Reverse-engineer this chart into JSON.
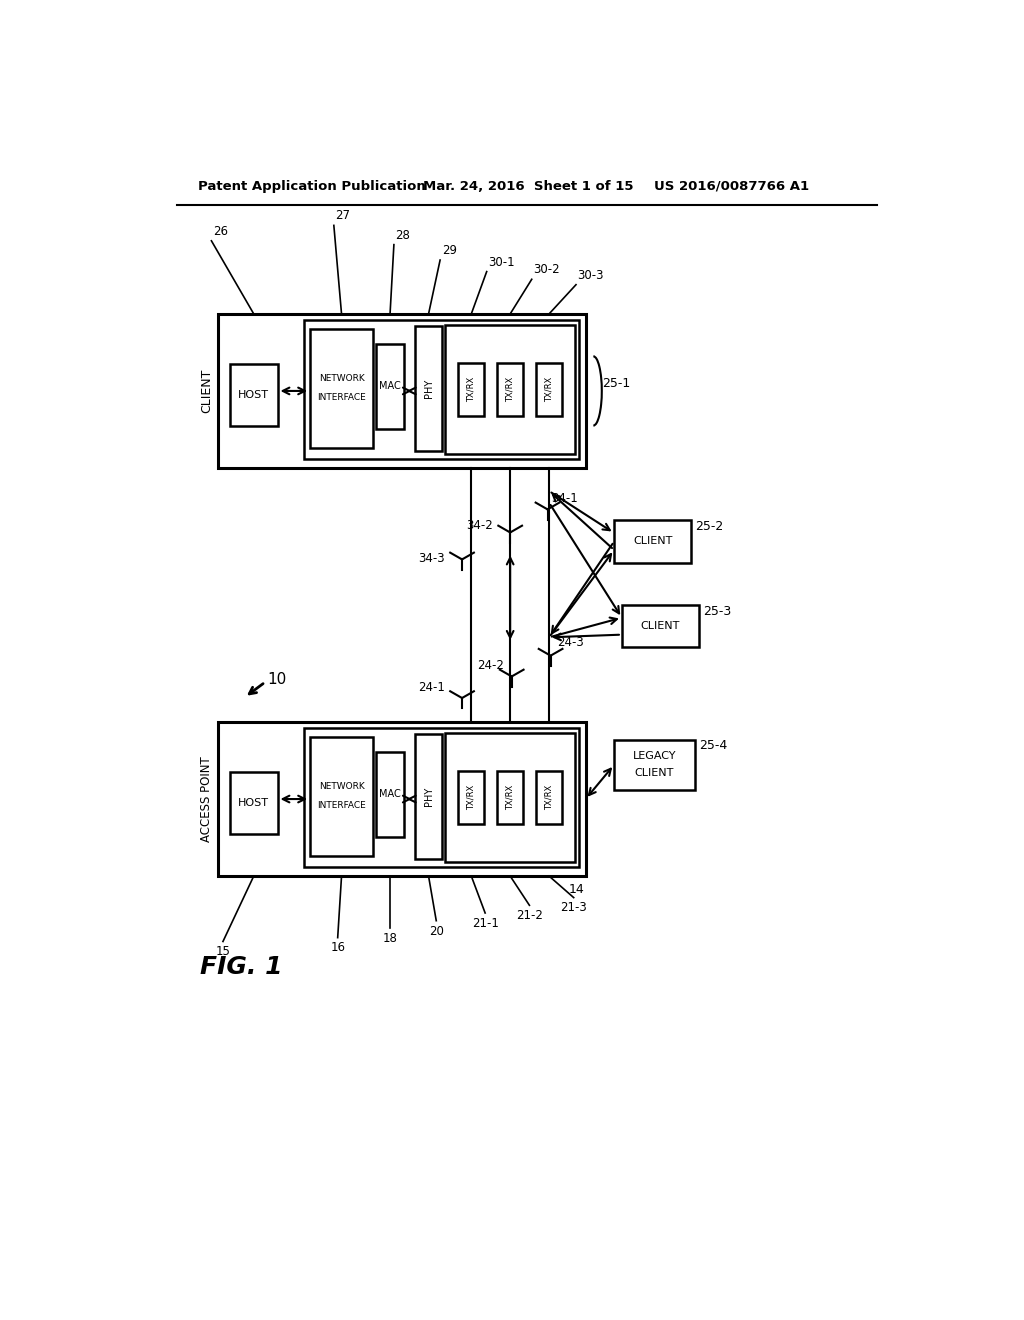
{
  "bg_color": "#ffffff",
  "header_left": "Patent Application Publication",
  "header_mid": "Mar. 24, 2016  Sheet 1 of 15",
  "header_right": "US 2016/0087766 A1",
  "fig_label": "FIG. 1",
  "fig_number": "10"
}
